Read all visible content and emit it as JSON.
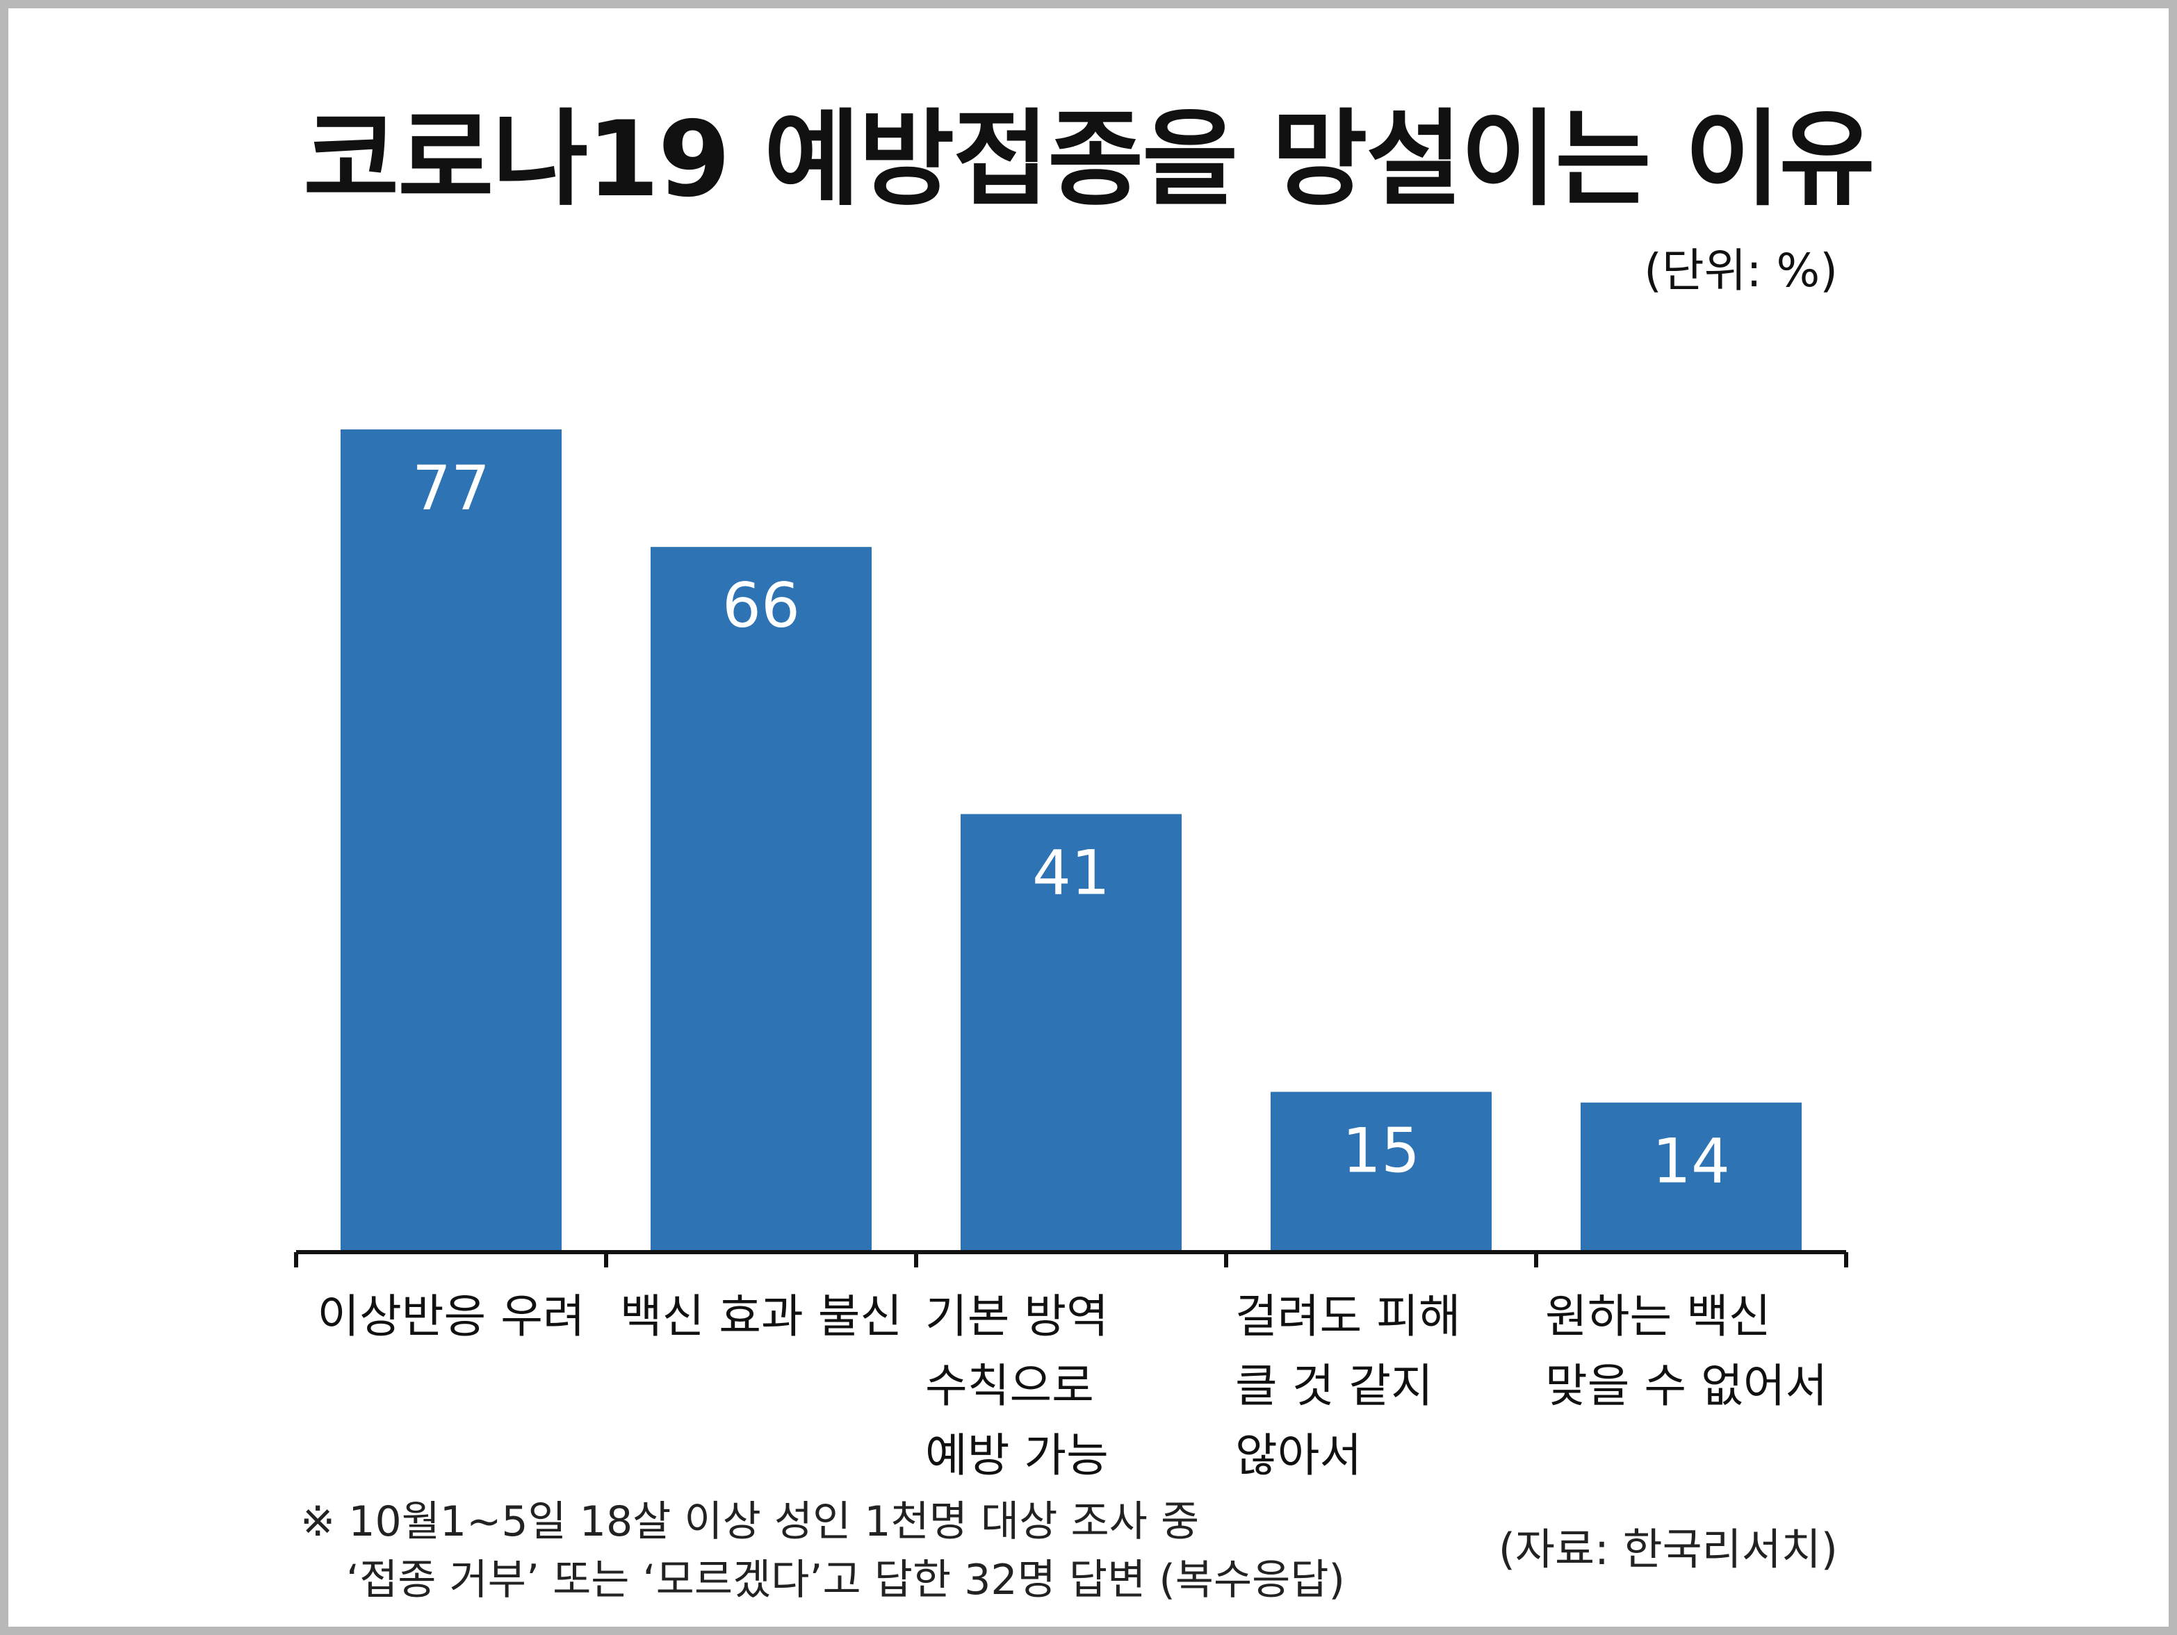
{
  "chart_data": {
    "type": "bar",
    "title": "코로나19 예방접종을 망설이는 이유",
    "unit_label": "(단위: %)",
    "categories": [
      "이상반응 우려",
      "백신 효과 불신",
      "기본 방역\n수칙으로\n예방 가능",
      "걸려도 피해\n클 것 같지\n않아서",
      "원하는 백신\n맞을 수 없어서"
    ],
    "values": [
      77,
      66,
      41,
      15,
      14
    ],
    "ylim": [
      0,
      77
    ],
    "grid": false,
    "legend": "none",
    "bar_color": "#2e74b5",
    "data_label_color": "#ffffff",
    "note_line1": "※ 10월1~5일 18살 이상 성인 1천명 대상 조사 중",
    "note_line2": "‘접종 거부’ 또는 ‘모르겠다’고 답한 32명 답변 (복수응답)",
    "source": "(자료: 한국리서치)"
  }
}
